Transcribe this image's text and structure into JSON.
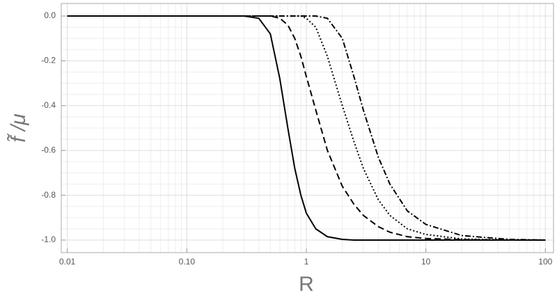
{
  "chart_data": {
    "type": "line",
    "xlabel": "R",
    "ylabel": "f̃ /μ",
    "x": [
      0.01,
      0.1,
      0.3,
      0.4,
      0.5,
      0.6,
      0.7,
      0.8,
      0.9,
      1,
      1.2,
      1.5,
      2,
      2.5,
      3,
      4,
      5,
      7,
      10,
      20,
      50,
      100
    ],
    "series": [
      {
        "color": "#000000",
        "dash": "none",
        "values": [
          0,
          0,
          0,
          -0.01,
          -0.08,
          -0.28,
          -0.5,
          -0.68,
          -0.8,
          -0.88,
          -0.95,
          -0.985,
          -0.997,
          -1,
          -1,
          -1,
          -1,
          -1,
          -1,
          -1,
          -1,
          -1
        ]
      },
      {
        "color": "#000000",
        "dash": "9,5",
        "values": [
          0,
          0,
          0,
          0,
          0,
          -0.01,
          -0.04,
          -0.1,
          -0.18,
          -0.27,
          -0.42,
          -0.6,
          -0.76,
          -0.84,
          -0.89,
          -0.94,
          -0.965,
          -0.985,
          -0.993,
          -0.998,
          -1,
          -1
        ]
      },
      {
        "color": "#000000",
        "dash": "2,3",
        "values": [
          0,
          0,
          0,
          0,
          0,
          0,
          0,
          0,
          0,
          -0.01,
          -0.05,
          -0.18,
          -0.4,
          -0.56,
          -0.68,
          -0.82,
          -0.89,
          -0.95,
          -0.975,
          -0.995,
          -1,
          -1
        ]
      },
      {
        "color": "#000000",
        "dash": "8,3,2,3",
        "values": [
          0,
          0,
          0,
          0,
          0,
          0,
          0,
          0,
          0,
          0,
          0,
          -0.01,
          -0.1,
          -0.27,
          -0.42,
          -0.63,
          -0.75,
          -0.87,
          -0.93,
          -0.98,
          -0.997,
          -1
        ]
      }
    ],
    "xscale": "log",
    "xlim": [
      0.0089,
      117
    ],
    "xticks": [
      0.01,
      {
        "value": 0.1,
        "label": "0.10"
      },
      1,
      10,
      100
    ],
    "ylim": [
      -1.056,
      0.056
    ],
    "yticks": [
      {
        "value": 0,
        "label": "0.0"
      },
      -0.2,
      -0.4,
      -0.6,
      -0.8,
      {
        "value": -1,
        "label": "-1.0"
      }
    ],
    "grid": true
  }
}
